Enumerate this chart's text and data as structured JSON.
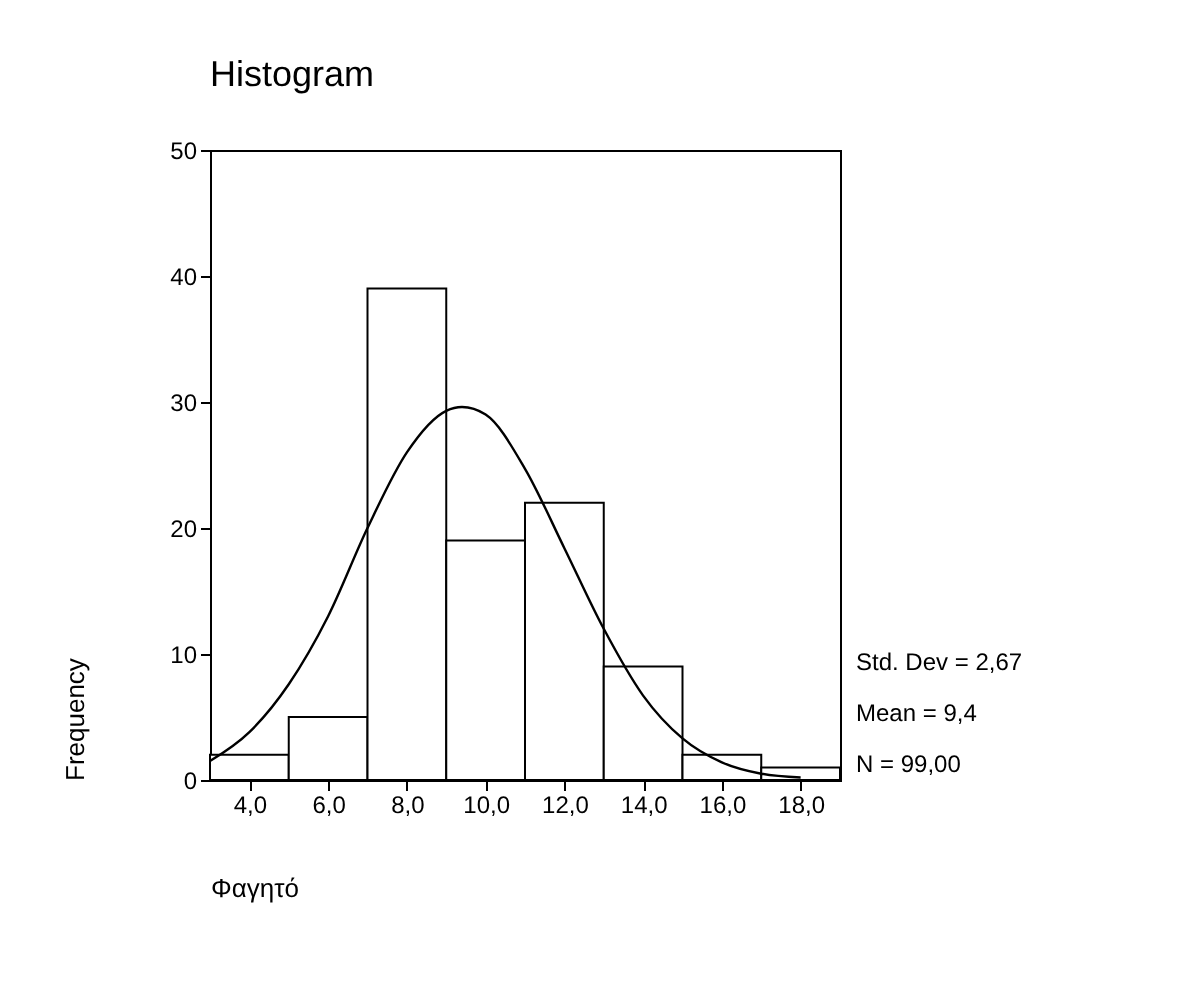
{
  "chart_data": {
    "type": "histogram",
    "title": "Histogram",
    "xlabel": "Φαγητό",
    "ylabel": "Frequency",
    "xlim": [
      3,
      19
    ],
    "xticks": [
      {
        "value": 4,
        "label": "4,0"
      },
      {
        "value": 6,
        "label": "6,0"
      },
      {
        "value": 8,
        "label": "8,0"
      },
      {
        "value": 10,
        "label": "10,0"
      },
      {
        "value": 12,
        "label": "12,0"
      },
      {
        "value": 14,
        "label": "14,0"
      },
      {
        "value": 16,
        "label": "16,0"
      },
      {
        "value": 18,
        "label": "18,0"
      }
    ],
    "ylim": [
      0,
      50
    ],
    "yticks": [
      0,
      10,
      20,
      30,
      40,
      50
    ],
    "series": [
      {
        "type": "histogram",
        "bins": [
          3,
          5,
          7,
          9,
          11,
          13,
          15,
          17,
          19
        ],
        "values": [
          2,
          5,
          39,
          19,
          22,
          9,
          2,
          1
        ],
        "color": "#ffffff"
      },
      {
        "type": "line",
        "x": [
          3,
          4,
          5,
          6,
          7,
          8,
          9,
          9.4,
          10,
          11,
          12,
          13,
          14,
          15,
          16,
          17,
          18
        ],
        "values": [
          1.5,
          3.8,
          7.6,
          13,
          20,
          26,
          29.3,
          29.6,
          29,
          24.7,
          18.4,
          12,
          6.7,
          3.3,
          1.4,
          0.5,
          0.2
        ],
        "color": "#000000"
      }
    ],
    "annotations": [
      "Std. Dev = 2,67",
      "Mean = 9,4",
      "N = 99,00"
    ]
  }
}
